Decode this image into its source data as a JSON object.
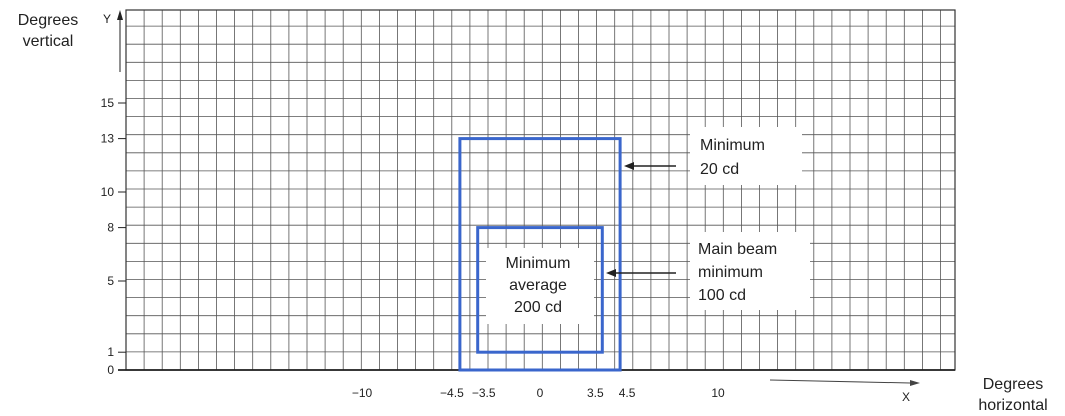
{
  "diagram": {
    "y_axis": {
      "title_line1": "Degrees",
      "title_line2": "vertical",
      "letter": "Y",
      "ticks": [
        {
          "value": 15,
          "label": "15"
        },
        {
          "value": 13,
          "label": "13"
        },
        {
          "value": 10,
          "label": "10"
        },
        {
          "value": 8,
          "label": "8"
        },
        {
          "value": 5,
          "label": "5"
        },
        {
          "value": 1,
          "label": "1"
        },
        {
          "value": 0,
          "label": "0"
        }
      ]
    },
    "x_axis": {
      "title_line1": "Degrees",
      "title_line2": "horizontal",
      "letter": "X",
      "ticks": [
        {
          "value": -10,
          "label": "−10"
        },
        {
          "value": -4.5,
          "label": "−4.5"
        },
        {
          "value": -3.5,
          "label": "−3.5"
        },
        {
          "value": 0,
          "label": "0"
        },
        {
          "value": 3.5,
          "label": "3.5"
        },
        {
          "value": 4.5,
          "label": "4.5"
        },
        {
          "value": 10,
          "label": "10"
        }
      ]
    },
    "outer_zone": {
      "x_range": [
        -4.5,
        4.5
      ],
      "y_range": [
        0,
        13
      ],
      "callout_line1": "Minimum",
      "callout_line2": "20 cd"
    },
    "inner_zone": {
      "x_range": [
        -3.5,
        3.5
      ],
      "y_range": [
        1,
        8
      ],
      "label_line1": "Minimum",
      "label_line2": "average",
      "label_line3": "200 cd",
      "callout_line1": "Main beam",
      "callout_line2": "minimum",
      "callout_line3": "100 cd"
    },
    "colors": {
      "zone": "#3a66cc",
      "grid": "#555555",
      "text": "#222222"
    }
  }
}
